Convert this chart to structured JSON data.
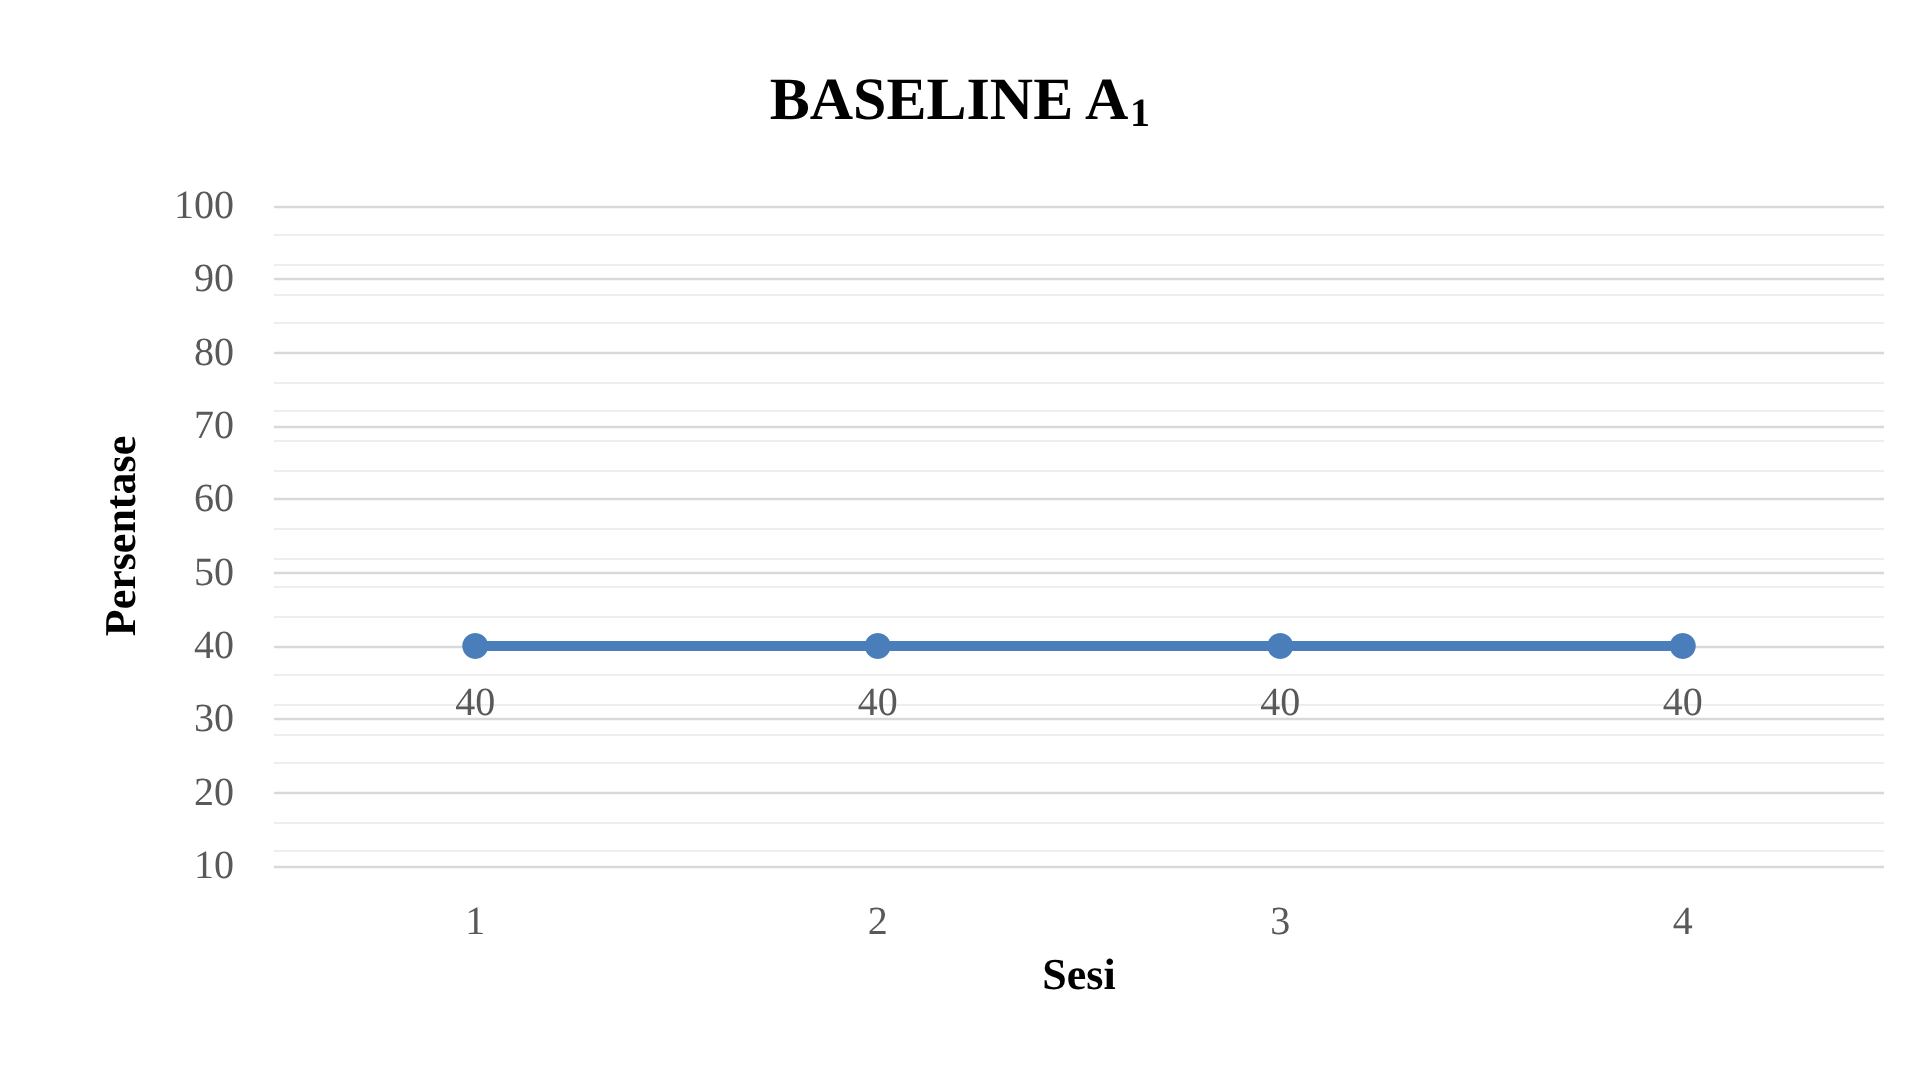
{
  "chart_data": {
    "type": "line",
    "title": "BASELINE A$_{1}$",
    "xlabel": "Sesi",
    "ylabel": "Persentase",
    "categories": [
      "1",
      "2",
      "3",
      "4"
    ],
    "series": [
      {
        "color": "#4a7ebb",
        "values": [
          40,
          40,
          40,
          40
        ]
      }
    ],
    "ylim": [
      10,
      100
    ],
    "yticks": [
      10,
      20,
      30,
      40,
      50,
      60,
      70,
      80,
      90,
      100
    ],
    "grid": "y",
    "marker": "circle",
    "line_style": "solid",
    "data_labels": true
  }
}
